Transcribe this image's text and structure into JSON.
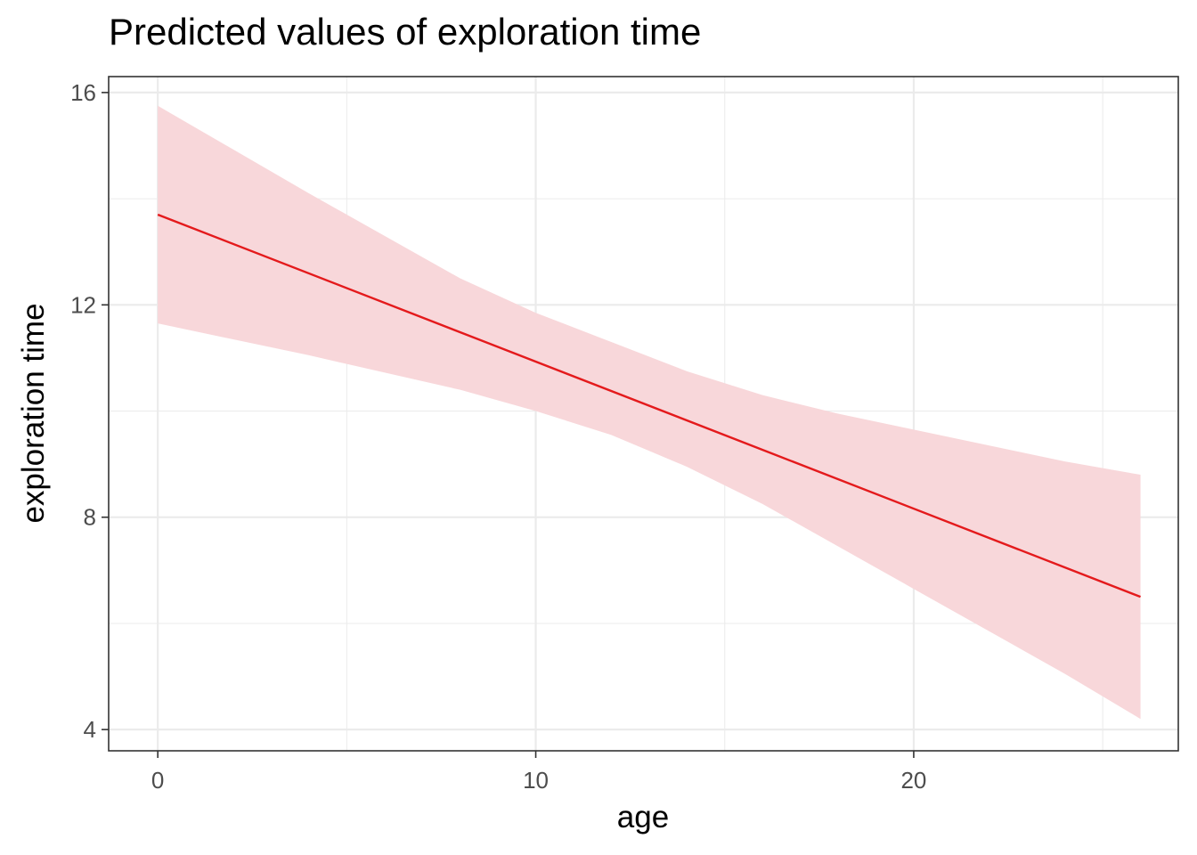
{
  "chart_data": {
    "type": "line",
    "title": "Predicted values of exploration time",
    "xlabel": "age",
    "ylabel": "exploration time",
    "xlim": [
      -1.3,
      27
    ],
    "ylim": [
      3.6,
      16.3
    ],
    "x_ticks": [
      0,
      10,
      20
    ],
    "y_ticks": [
      4,
      8,
      12,
      16
    ],
    "x_minor": [
      5,
      15,
      25
    ],
    "y_minor": [
      6,
      10,
      14
    ],
    "grid": true,
    "series": [
      {
        "x": [
          0,
          26
        ],
        "y": [
          13.7,
          6.5
        ],
        "color": "#e41a1c"
      }
    ],
    "ribbon": {
      "x": [
        0,
        4,
        8,
        10,
        12,
        14,
        16,
        18,
        20,
        22,
        24,
        26
      ],
      "lower": [
        11.65,
        11.05,
        10.4,
        10.0,
        9.55,
        8.95,
        8.25,
        7.45,
        6.65,
        5.85,
        5.05,
        4.2
      ],
      "upper": [
        15.75,
        14.1,
        12.5,
        11.85,
        11.3,
        10.75,
        10.3,
        9.95,
        9.65,
        9.35,
        9.05,
        8.8
      ],
      "color": "#f8d7da"
    },
    "colors": {
      "line": "#e41a1c",
      "ribbon": "#f8d7da",
      "grid": "#ebebeb",
      "panel_border": "#333333",
      "tick_text": "#4d4d4d"
    }
  }
}
